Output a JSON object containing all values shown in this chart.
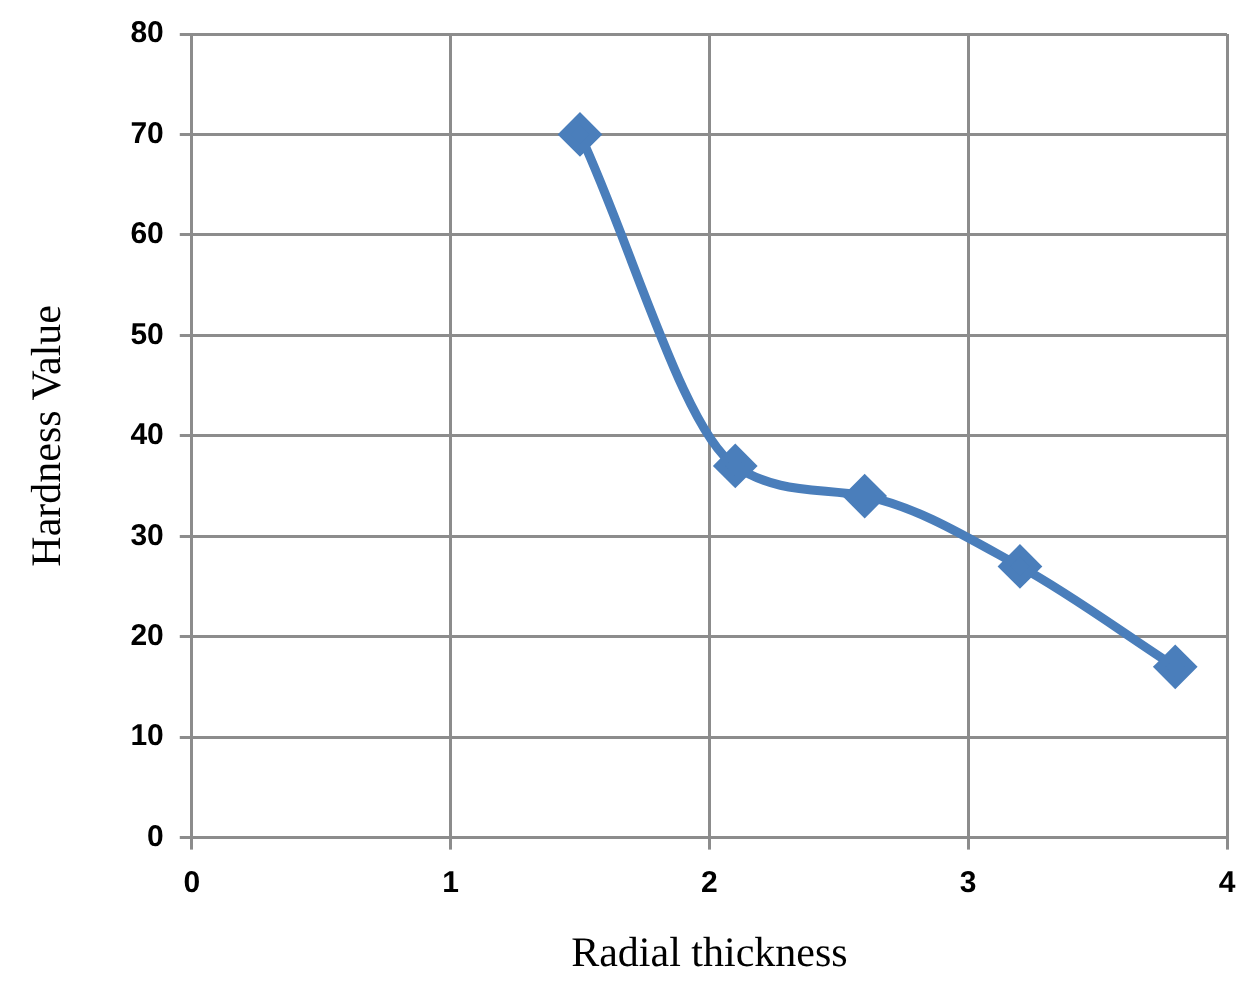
{
  "chart_data": {
    "type": "line",
    "xlabel": "Radial thickness",
    "ylabel": "Hardness Value",
    "x": [
      1.5,
      2.1,
      2.6,
      3.2,
      3.8
    ],
    "series": [
      {
        "color": "#4a7ebb",
        "values": [
          70,
          37,
          34,
          27,
          17
        ]
      }
    ],
    "xlim": [
      0,
      4
    ],
    "xticks": [
      0,
      1,
      2,
      3,
      4
    ],
    "ylim": [
      0,
      80
    ],
    "yticks": [
      0,
      10,
      20,
      30,
      40,
      50,
      60,
      70,
      80
    ],
    "grid": true,
    "legend": false,
    "marker": "diamond",
    "line_style": "solid"
  }
}
